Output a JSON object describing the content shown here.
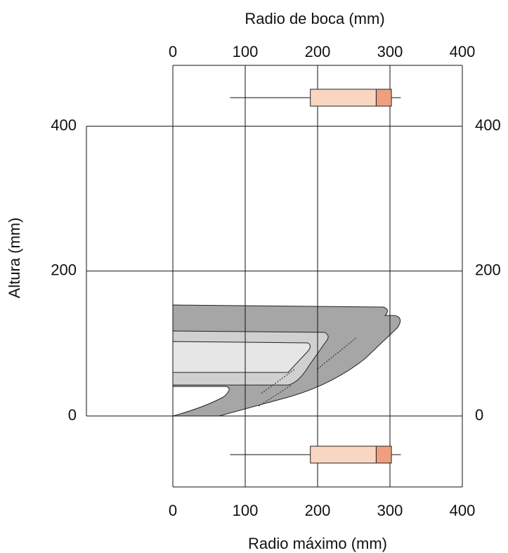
{
  "chart_data": {
    "type": "boxplot",
    "top_axis_label": "Radio de boca (mm)",
    "bottom_axis_label": "Radio máximo (mm)",
    "y_axis_label": "Altura (mm)",
    "xlim": [
      0,
      400
    ],
    "xticks": [
      0,
      100,
      200,
      300,
      400
    ],
    "ylim": [
      -98,
      484
    ],
    "yticks": [
      0,
      200,
      400
    ],
    "grid": true,
    "boxes": [
      {
        "axis": "top",
        "min": 79,
        "q1": 190,
        "median": 281,
        "q3": 302,
        "max": 315,
        "color": "#f9d6c2",
        "upper_color": "#ef9f7e"
      },
      {
        "axis": "bottom",
        "min": 79,
        "q1": 190,
        "median": 281,
        "q3": 302,
        "max": 315,
        "color": "#f9d6c2",
        "upper_color": "#ef9f7e"
      }
    ]
  }
}
